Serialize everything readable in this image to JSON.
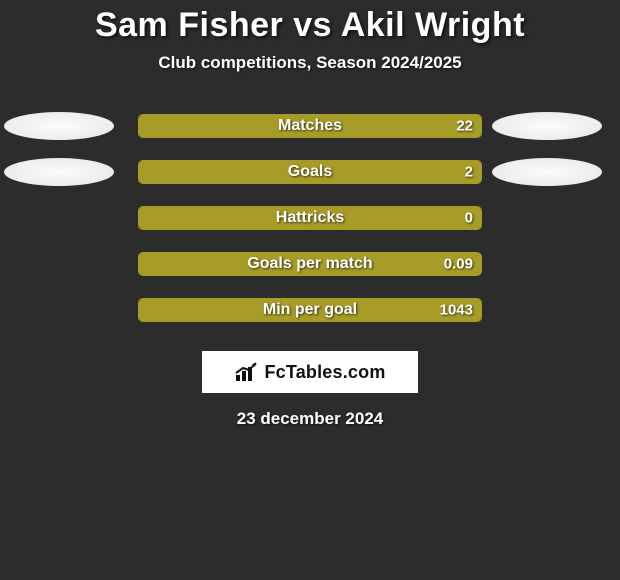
{
  "title": "Sam Fisher vs Akil Wright",
  "subtitle": "Club competitions, Season 2024/2025",
  "date_text": "23 december 2024",
  "brand": {
    "name": "FcTables.com"
  },
  "colors": {
    "background": "#2c2c2c",
    "left_fill": "#a79c28",
    "right_fill": "#a79c28",
    "track_border": "#a79c28",
    "text": "#ffffff"
  },
  "title_fontsize": 34,
  "subtitle_fontsize": 17,
  "label_fontsize": 16,
  "value_fontsize": 15,
  "oval_rows": [
    0,
    1
  ],
  "rows": [
    {
      "label": "Matches",
      "left": null,
      "right": "22",
      "left_pct": 0,
      "right_pct": 100
    },
    {
      "label": "Goals",
      "left": null,
      "right": "2",
      "left_pct": 0,
      "right_pct": 100
    },
    {
      "label": "Hattricks",
      "left": null,
      "right": "0",
      "left_pct": 0,
      "right_pct": 100
    },
    {
      "label": "Goals per match",
      "left": null,
      "right": "0.09",
      "left_pct": 0,
      "right_pct": 100
    },
    {
      "label": "Min per goal",
      "left": null,
      "right": "1043",
      "left_pct": 0,
      "right_pct": 100
    }
  ]
}
